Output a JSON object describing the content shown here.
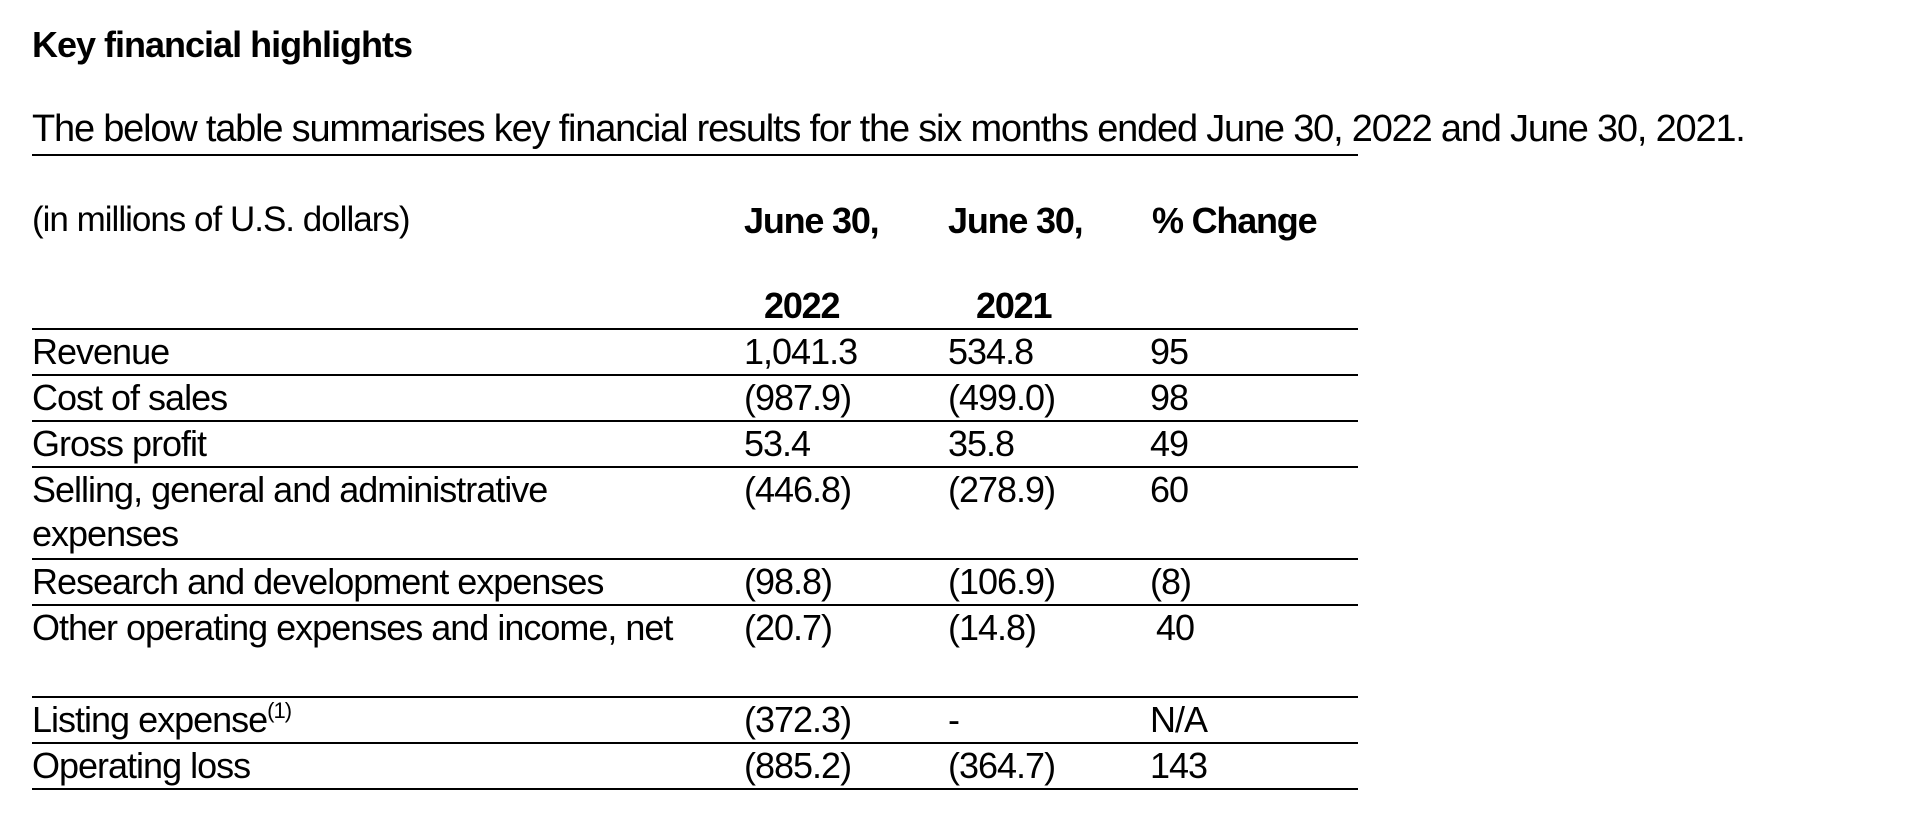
{
  "heading": "Key financial highlights",
  "intro": "The below table summarises key financial results for the six months ended June 30, 2022 and June 30, 2021.",
  "units_label": "(in millions of U.S. dollars)",
  "columns": [
    {
      "line1": "June 30,",
      "line2": "2022"
    },
    {
      "line1": "June 30,",
      "line2": "2021"
    },
    {
      "line1": "% Change",
      "line2": ""
    }
  ],
  "rows": [
    {
      "label": "Revenue",
      "label_sup": "",
      "v2022": "1,041.3",
      "v2021": "534.8",
      "change": "95"
    },
    {
      "label": "Cost of sales",
      "label_sup": "",
      "v2022": "(987.9)",
      "v2021": "(499.0)",
      "change": "98"
    },
    {
      "label": "Gross profit",
      "label_sup": "",
      "v2022": "53.4",
      "v2021": "35.8",
      "change": "49"
    },
    {
      "label": "Selling, general and administrative expenses",
      "label_sup": "",
      "v2022": "(446.8)",
      "v2021": "(278.9)",
      "change": "60"
    },
    {
      "label": "Research and development expenses",
      "label_sup": "",
      "v2022": "(98.8)",
      "v2021": "(106.9)",
      "change": "(8)"
    },
    {
      "label": "Other operating expenses and income, net",
      "label_sup": "",
      "v2022": "(20.7)",
      "v2021": "(14.8)",
      "change": "40"
    },
    {
      "label": "Listing expense",
      "label_sup": "(1)",
      "v2022": "(372.3)",
      "v2021": "-",
      "change": "N/A"
    },
    {
      "label": "Operating loss",
      "label_sup": "",
      "v2022": "(885.2)",
      "v2021": "(364.7)",
      "change": "143"
    }
  ]
}
